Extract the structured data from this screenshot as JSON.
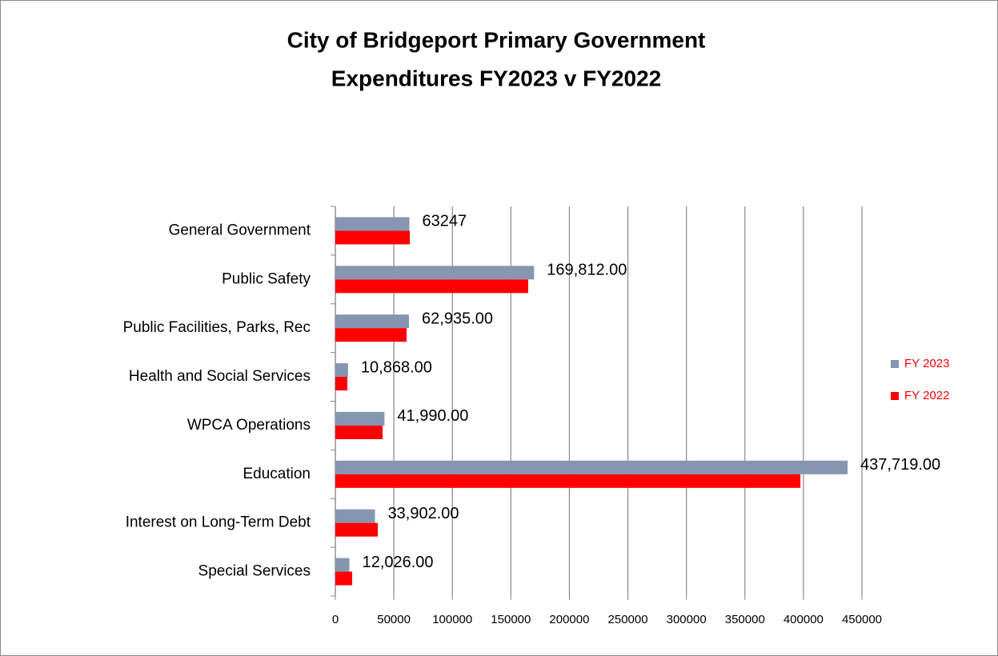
{
  "chart_data": {
    "type": "bar",
    "orientation": "horizontal",
    "title": [
      "City of Bridgeport Primary Government",
      "Expenditures FY2023 v FY2022"
    ],
    "categories": [
      "General Government",
      "Public Safety",
      "Public Facilities, Parks, Rec",
      "Health and Social Services",
      "WPCA Operations",
      "Education",
      "Interest on Long-Term Debt",
      "Special Services"
    ],
    "series": [
      {
        "name": "FY 2023",
        "color": "#8496b0",
        "values": [
          63247,
          169812,
          62935,
          10868,
          41990,
          437719,
          33902,
          12026
        ],
        "value_labels": [
          "63247",
          "169,812.00",
          "62,935.00",
          "10,868.00",
          "41,990.00",
          "437,719.00",
          "33,902.00",
          "12,026.00"
        ]
      },
      {
        "name": "FY 2022",
        "color": "#ff0000",
        "values": [
          63600,
          164800,
          60900,
          10300,
          40400,
          397400,
          36300,
          14400
        ]
      }
    ],
    "xlim": [
      0,
      450000
    ],
    "xticks": [
      0,
      50000,
      100000,
      150000,
      200000,
      250000,
      300000,
      350000,
      400000,
      450000
    ],
    "grid": true,
    "legend": "right"
  }
}
